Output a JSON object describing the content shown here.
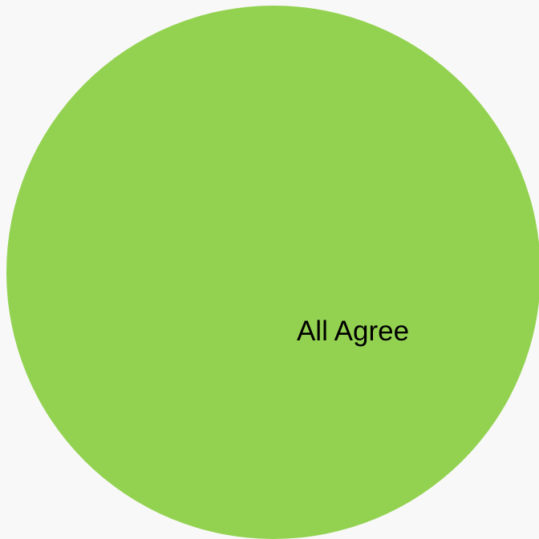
{
  "colors": {
    "background": "#f8f8f8",
    "slice_all_agree": "#93d251"
  },
  "chart_data": {
    "type": "pie",
    "title": "",
    "slices": [
      {
        "label": "All Agree",
        "value": 100,
        "color": "#93d251"
      }
    ],
    "legend": "none"
  }
}
